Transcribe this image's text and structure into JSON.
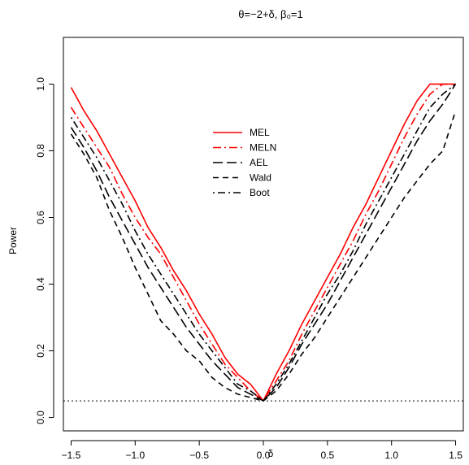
{
  "chart_data": {
    "type": "line",
    "title": "θ=−2+δ, β₀=1",
    "xlabel": "δ",
    "ylabel": "Power",
    "xlim": [
      -1.56,
      1.56
    ],
    "ylim": [
      -0.04,
      1.14
    ],
    "x_ticks": [
      -1.5,
      -1.0,
      -0.5,
      0.0,
      0.5,
      1.0,
      1.5
    ],
    "x_tick_labels": [
      "−1.5",
      "−1.0",
      "−0.5",
      "0.0",
      "0.5",
      "1.0",
      "1.5"
    ],
    "y_ticks": [
      0.0,
      0.2,
      0.4,
      0.6,
      0.8,
      1.0
    ],
    "y_tick_labels": [
      "0.0",
      "0.2",
      "0.4",
      "0.6",
      "0.8",
      "1.0"
    ],
    "grid": false,
    "legend_position": "center",
    "reference_line": {
      "y": 0.05,
      "style": "dotted",
      "color": "#000000"
    },
    "x": [
      -1.5,
      -1.4,
      -1.3,
      -1.2,
      -1.1,
      -1.0,
      -0.9,
      -0.8,
      -0.7,
      -0.6,
      -0.5,
      -0.4,
      -0.3,
      -0.2,
      -0.1,
      0.0,
      0.1,
      0.2,
      0.3,
      0.4,
      0.5,
      0.6,
      0.7,
      0.8,
      0.9,
      1.0,
      1.1,
      1.2,
      1.3,
      1.4,
      1.5
    ],
    "series": [
      {
        "name": "MEL",
        "color": "#ff0000",
        "dash": "solid",
        "values": [
          0.99,
          0.92,
          0.86,
          0.79,
          0.72,
          0.65,
          0.57,
          0.51,
          0.44,
          0.38,
          0.31,
          0.25,
          0.18,
          0.13,
          0.1,
          0.05,
          0.13,
          0.2,
          0.28,
          0.35,
          0.42,
          0.49,
          0.57,
          0.64,
          0.72,
          0.8,
          0.88,
          0.95,
          1.0,
          1.0,
          1.0
        ]
      },
      {
        "name": "MELN",
        "color": "#ff0000",
        "dash": "dashdot",
        "values": [
          0.93,
          0.87,
          0.81,
          0.75,
          0.67,
          0.6,
          0.54,
          0.49,
          0.42,
          0.35,
          0.28,
          0.22,
          0.16,
          0.12,
          0.08,
          0.05,
          0.11,
          0.17,
          0.25,
          0.32,
          0.39,
          0.46,
          0.53,
          0.61,
          0.68,
          0.76,
          0.84,
          0.91,
          0.97,
          1.0,
          1.0
        ]
      },
      {
        "name": "AEL",
        "color": "#000000",
        "dash": "longdash",
        "values": [
          0.87,
          0.81,
          0.74,
          0.66,
          0.59,
          0.52,
          0.45,
          0.39,
          0.33,
          0.27,
          0.22,
          0.17,
          0.13,
          0.09,
          0.07,
          0.05,
          0.09,
          0.15,
          0.22,
          0.28,
          0.34,
          0.41,
          0.48,
          0.55,
          0.62,
          0.69,
          0.76,
          0.83,
          0.89,
          0.94,
          1.0
        ]
      },
      {
        "name": "Wald",
        "color": "#000000",
        "dash": "dashed",
        "values": [
          0.85,
          0.79,
          0.72,
          0.62,
          0.54,
          0.45,
          0.37,
          0.29,
          0.25,
          0.2,
          0.17,
          0.12,
          0.09,
          0.07,
          0.06,
          0.05,
          0.08,
          0.13,
          0.19,
          0.24,
          0.3,
          0.36,
          0.42,
          0.48,
          0.54,
          0.6,
          0.66,
          0.71,
          0.76,
          0.8,
          0.92
        ]
      },
      {
        "name": "Boot",
        "color": "#000000",
        "dash": "dotdash",
        "values": [
          0.9,
          0.84,
          0.78,
          0.71,
          0.64,
          0.56,
          0.49,
          0.43,
          0.37,
          0.31,
          0.25,
          0.2,
          0.15,
          0.1,
          0.08,
          0.05,
          0.1,
          0.16,
          0.23,
          0.3,
          0.37,
          0.43,
          0.5,
          0.58,
          0.65,
          0.72,
          0.79,
          0.86,
          0.93,
          0.97,
          1.0
        ]
      }
    ]
  }
}
